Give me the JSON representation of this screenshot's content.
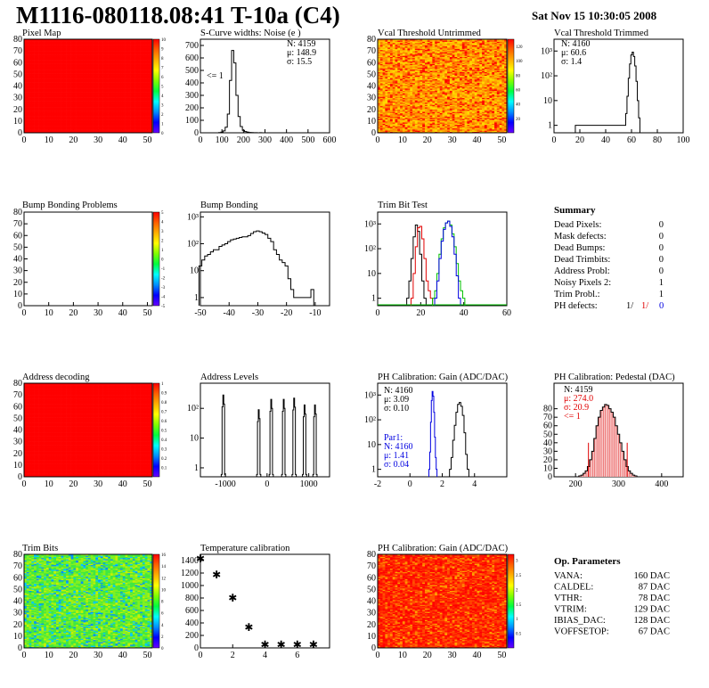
{
  "header": {
    "title": "M1116-080118.08:41 T-10a (C4)",
    "date": "Sat Nov 15 10:30:05 2008"
  },
  "panels": [
    {
      "key": "pixel_map",
      "title": "Pixel Map"
    },
    {
      "key": "scurve",
      "title": "S-Curve widths: Noise (e )"
    },
    {
      "key": "vcal_untrimmed",
      "title": "Vcal Threshold Untrimmed"
    },
    {
      "key": "vcal_trimmed",
      "title": "Vcal Threshold Trimmed"
    },
    {
      "key": "bump_problems",
      "title": "Bump Bonding Problems"
    },
    {
      "key": "bump_bonding",
      "title": "Bump Bonding"
    },
    {
      "key": "trim_bit_test",
      "title": "Trim Bit Test"
    },
    {
      "key": "address_decoding",
      "title": "Address decoding"
    },
    {
      "key": "address_levels",
      "title": "Address Levels"
    },
    {
      "key": "ph_gain",
      "title": "PH Calibration: Gain (ADC/DAC)"
    },
    {
      "key": "ph_pedestal",
      "title": "PH Calibration: Pedestal (DAC)"
    },
    {
      "key": "trim_bits",
      "title": "Trim Bits"
    },
    {
      "key": "temp_cal",
      "title": "Temperature calibration"
    },
    {
      "key": "ph_gain_map",
      "title": "PH Calibration: Gain (ADC/DAC)"
    }
  ],
  "stats": {
    "scurve": [
      "N: 4159",
      "μ: 148.9",
      "σ: 15.5"
    ],
    "scurve_under": "<= 1",
    "vcal_trimmed": [
      "N: 4160",
      "μ: 60.6",
      "σ:  1.4"
    ],
    "ph_gain": [
      "N: 4160",
      "μ: 3.09",
      "σ: 0.10"
    ],
    "ph_gain_par1": [
      "Par1:",
      "N: 4160",
      "μ: 1.41",
      "σ: 0.04"
    ],
    "ph_pedestal_black": "N: 4159",
    "ph_pedestal_red": [
      "μ: 274.0",
      "σ: 20.9",
      "<= 1"
    ]
  },
  "summary": {
    "title": "Summary",
    "rows": [
      {
        "label": "Dead Pixels:",
        "value": "0"
      },
      {
        "label": "Mask defects:",
        "value": "0"
      },
      {
        "label": "Dead Bumps:",
        "value": "0"
      },
      {
        "label": "Dead Trimbits:",
        "value": "0"
      },
      {
        "label": "Address Probl:",
        "value": "0"
      },
      {
        "label": "Noisy Pixels 2:",
        "value": "1"
      },
      {
        "label": "Trim Probl.:",
        "value": "1"
      }
    ],
    "ph_defects_label": "PH defects:",
    "ph_defects_values": [
      "1/",
      "1/",
      "0"
    ]
  },
  "op_params": {
    "title": "Op. Parameters",
    "rows": [
      {
        "label": "VANA:",
        "value": "160 DAC"
      },
      {
        "label": "CALDEL:",
        "value": "87 DAC"
      },
      {
        "label": "VTHR:",
        "value": "78 DAC"
      },
      {
        "label": "VTRIM:",
        "value": "129 DAC"
      },
      {
        "label": "IBIAS_DAC:",
        "value": "128 DAC"
      },
      {
        "label": "VOFFSETOP:",
        "value": "67 DAC"
      }
    ]
  },
  "colors": {
    "map_red": "#ff0000",
    "series_black": "#000000",
    "series_red": "#e00000",
    "series_green": "#00c000",
    "series_blue": "#0000e0"
  },
  "chart_data": [
    {
      "key": "pixel_map",
      "type": "heatmap",
      "xlim": [
        0,
        52
      ],
      "ylim": [
        0,
        80
      ],
      "xticks": [
        0,
        10,
        20,
        30,
        40,
        50
      ],
      "yticks": [
        0,
        10,
        20,
        30,
        40,
        50,
        60,
        70,
        80
      ],
      "zlim": [
        0,
        10
      ],
      "zticks": [
        0,
        1,
        2,
        3,
        4,
        5,
        6,
        7,
        8,
        9,
        10
      ],
      "value": 10
    },
    {
      "key": "scurve",
      "type": "histogram",
      "xlim": [
        0,
        600
      ],
      "ylim": [
        0,
        750
      ],
      "xticks": [
        0,
        100,
        200,
        300,
        400,
        500,
        600
      ],
      "yticks": [
        0,
        100,
        200,
        300,
        400,
        500,
        600,
        700
      ],
      "x": [
        90,
        100,
        110,
        120,
        130,
        140,
        150,
        160,
        170,
        180,
        190,
        200,
        210,
        220,
        230,
        240,
        250,
        260,
        270,
        280,
        290
      ],
      "y": [
        2,
        5,
        15,
        45,
        150,
        420,
        660,
        560,
        300,
        130,
        50,
        20,
        10,
        5,
        3,
        2,
        1,
        1,
        0,
        1,
        0
      ]
    },
    {
      "key": "vcal_untrimmed",
      "type": "heatmap",
      "xlim": [
        0,
        52
      ],
      "ylim": [
        0,
        80
      ],
      "xticks": [
        0,
        10,
        20,
        30,
        40,
        50
      ],
      "yticks": [
        0,
        10,
        20,
        30,
        40,
        50,
        60,
        70,
        80
      ],
      "zlim": [
        0,
        130
      ],
      "zticks": [
        20,
        40,
        60,
        80,
        100,
        120
      ],
      "palette": "yellow-orange-red"
    },
    {
      "key": "vcal_trimmed",
      "type": "histogram",
      "log": true,
      "xlim": [
        0,
        100
      ],
      "ylim": [
        0.5,
        3000
      ],
      "xticks": [
        0,
        20,
        40,
        60,
        80,
        100
      ],
      "yticks": [
        1,
        10,
        100,
        1000
      ],
      "ytick_labels": [
        "1",
        "10",
        "10²",
        "10³"
      ],
      "x": [
        17,
        18,
        19,
        55,
        56,
        57,
        58,
        59,
        60,
        61,
        62,
        63,
        64,
        65,
        66
      ],
      "y": [
        1,
        1,
        1,
        1,
        3,
        15,
        80,
        300,
        700,
        900,
        600,
        250,
        60,
        10,
        2
      ]
    },
    {
      "key": "bump_problems",
      "type": "heatmap",
      "xlim": [
        0,
        52
      ],
      "ylim": [
        0,
        80
      ],
      "xticks": [
        0,
        10,
        20,
        30,
        40,
        50
      ],
      "yticks": [
        0,
        10,
        20,
        30,
        40,
        50,
        60,
        70,
        80
      ],
      "zlim": [
        -5,
        5
      ],
      "zticks": [
        -5,
        -4,
        -3,
        -2,
        -1,
        0,
        1,
        2,
        3,
        4,
        5
      ],
      "value": null
    },
    {
      "key": "bump_bonding",
      "type": "histogram",
      "log": true,
      "xlim": [
        -50,
        -5
      ],
      "ylim": [
        0.5,
        1500
      ],
      "xticks": [
        -50,
        -40,
        -30,
        -20,
        -10
      ],
      "yticks": [
        1,
        10,
        100,
        1000
      ],
      "ytick_labels": [
        "1",
        "10",
        "10²",
        "10³"
      ],
      "x": [
        -50,
        -49,
        -48,
        -47,
        -46,
        -45,
        -44,
        -43,
        -42,
        -41,
        -40,
        -39,
        -38,
        -37,
        -36,
        -35,
        -34,
        -33,
        -32,
        -31,
        -30,
        -29,
        -28,
        -27,
        -26,
        -25,
        -24,
        -23,
        -22,
        -21,
        -20,
        -19,
        -18,
        -17,
        -16,
        -12,
        -11
      ],
      "y": [
        15,
        25,
        35,
        40,
        50,
        60,
        60,
        80,
        90,
        100,
        120,
        140,
        150,
        160,
        170,
        180,
        180,
        200,
        240,
        280,
        300,
        280,
        250,
        220,
        160,
        120,
        60,
        40,
        25,
        20,
        15,
        5,
        2,
        1,
        1,
        1,
        2
      ]
    },
    {
      "key": "trim_bit_test",
      "type": "histogram",
      "log": true,
      "xlim": [
        0,
        60
      ],
      "ylim": [
        0.5,
        3000
      ],
      "xticks": [
        0,
        20,
        40,
        60
      ],
      "yticks": [
        1,
        10,
        100,
        1000
      ],
      "ytick_labels": [
        "1",
        "10",
        "10²",
        "10³"
      ],
      "series": [
        {
          "color": "black",
          "x": [
            14,
            15,
            16,
            17,
            18,
            19,
            20,
            21,
            22
          ],
          "y": [
            1,
            5,
            40,
            300,
            900,
            500,
            60,
            5,
            1
          ]
        },
        {
          "color": "red",
          "x": [
            16,
            17,
            18,
            19,
            20,
            21,
            22,
            23,
            24,
            25
          ],
          "y": [
            1,
            10,
            120,
            700,
            800,
            250,
            40,
            5,
            2,
            1
          ]
        },
        {
          "color": "green",
          "x": [
            26,
            27,
            28,
            29,
            30,
            31,
            32,
            33,
            34,
            35,
            36,
            37,
            38,
            39,
            40
          ],
          "y": [
            1,
            2,
            10,
            60,
            250,
            700,
            1100,
            1300,
            900,
            400,
            120,
            25,
            5,
            2,
            1
          ]
        },
        {
          "color": "blue",
          "x": [
            27,
            28,
            29,
            30,
            31,
            32,
            33,
            34,
            35,
            36,
            37,
            38
          ],
          "y": [
            1,
            5,
            40,
            200,
            600,
            1100,
            1300,
            800,
            300,
            60,
            8,
            1
          ]
        }
      ]
    },
    {
      "key": "address_decoding",
      "type": "heatmap",
      "xlim": [
        0,
        52
      ],
      "ylim": [
        0,
        80
      ],
      "xticks": [
        0,
        10,
        20,
        30,
        40,
        50
      ],
      "yticks": [
        0,
        10,
        20,
        30,
        40,
        50,
        60,
        70,
        80
      ],
      "zlim": [
        0,
        1
      ],
      "zticks": [
        0.1,
        0.2,
        0.3,
        0.4,
        0.5,
        0.6,
        0.7,
        0.8,
        0.9,
        1
      ],
      "value": 1
    },
    {
      "key": "address_levels",
      "type": "histogram",
      "log": true,
      "xlim": [
        -1600,
        1500
      ],
      "ylim": [
        0.5,
        700
      ],
      "xticks": [
        -1000,
        0,
        1000
      ],
      "yticks": [
        1,
        10,
        100
      ],
      "ytick_labels": [
        "1",
        "10",
        "10²"
      ],
      "peaks": [
        {
          "x": -1050,
          "h": 280
        },
        {
          "x": -200,
          "h": 90
        },
        {
          "x": 100,
          "h": 200
        },
        {
          "x": 400,
          "h": 200
        },
        {
          "x": 650,
          "h": 220
        },
        {
          "x": 900,
          "h": 130
        },
        {
          "x": 1150,
          "h": 130
        }
      ]
    },
    {
      "key": "ph_gain",
      "type": "histogram",
      "log": true,
      "xlim": [
        -2,
        6
      ],
      "ylim": [
        0.5,
        3000
      ],
      "xticks": [
        -2,
        0,
        2,
        4
      ],
      "yticks": [
        1,
        10,
        100,
        1000
      ],
      "ytick_labels": [
        "1",
        "10",
        "10²",
        "10³"
      ],
      "series": [
        {
          "color": "black",
          "x": [
            2.5,
            2.6,
            2.7,
            2.8,
            2.9,
            3.0,
            3.1,
            3.2,
            3.3,
            3.4,
            3.5,
            3.6
          ],
          "y": [
            1,
            3,
            15,
            60,
            200,
            420,
            500,
            350,
            150,
            30,
            4,
            1
          ]
        },
        {
          "color": "blue",
          "x": [
            1.2,
            1.25,
            1.3,
            1.35,
            1.4,
            1.45,
            1.5,
            1.55,
            1.6,
            1.65
          ],
          "y": [
            1,
            5,
            80,
            600,
            1400,
            900,
            200,
            20,
            3,
            1
          ]
        }
      ]
    },
    {
      "key": "ph_pedestal",
      "type": "histogram",
      "xlim": [
        150,
        450
      ],
      "ylim": [
        0,
        110
      ],
      "xticks": [
        200,
        300,
        400
      ],
      "yticks": [
        0,
        10,
        20,
        30,
        40,
        50,
        60,
        70,
        80
      ],
      "x": [
        210,
        215,
        220,
        225,
        230,
        235,
        240,
        245,
        250,
        255,
        260,
        265,
        270,
        275,
        280,
        285,
        290,
        295,
        300,
        305,
        310,
        315,
        320,
        325,
        330,
        335,
        340
      ],
      "y": [
        1,
        2,
        4,
        7,
        12,
        20,
        30,
        45,
        60,
        70,
        78,
        82,
        85,
        84,
        80,
        76,
        70,
        60,
        50,
        40,
        30,
        20,
        12,
        7,
        4,
        2,
        1
      ],
      "markers": [
        230,
        320
      ]
    },
    {
      "key": "trim_bits",
      "type": "heatmap",
      "xlim": [
        0,
        52
      ],
      "ylim": [
        0,
        80
      ],
      "xticks": [
        0,
        10,
        20,
        30,
        40,
        50
      ],
      "yticks": [
        0,
        10,
        20,
        30,
        40,
        50,
        60,
        70,
        80
      ],
      "zlim": [
        0,
        16
      ],
      "zticks": [
        0,
        2,
        4,
        6,
        8,
        10,
        12,
        14,
        16
      ],
      "palette": "green-yellow"
    },
    {
      "key": "temp_cal",
      "type": "scatter",
      "xlim": [
        0,
        8
      ],
      "ylim": [
        0,
        1500
      ],
      "xticks": [
        0,
        2,
        4,
        6
      ],
      "yticks": [
        0,
        200,
        400,
        600,
        800,
        1000,
        1200,
        1400
      ],
      "x": [
        0,
        1,
        2,
        3,
        4,
        5,
        6,
        7
      ],
      "y": [
        1430,
        1170,
        800,
        330,
        50,
        50,
        50,
        50
      ]
    },
    {
      "key": "ph_gain_map",
      "type": "heatmap",
      "xlim": [
        0,
        52
      ],
      "ylim": [
        0,
        80
      ],
      "xticks": [
        0,
        10,
        20,
        30,
        40,
        50
      ],
      "yticks": [
        0,
        10,
        20,
        30,
        40,
        50,
        60,
        70,
        80
      ],
      "zlim": [
        0,
        3.2
      ],
      "zticks": [
        0.5,
        1,
        1.5,
        2,
        2.5,
        3
      ],
      "palette": "orange-red"
    }
  ]
}
